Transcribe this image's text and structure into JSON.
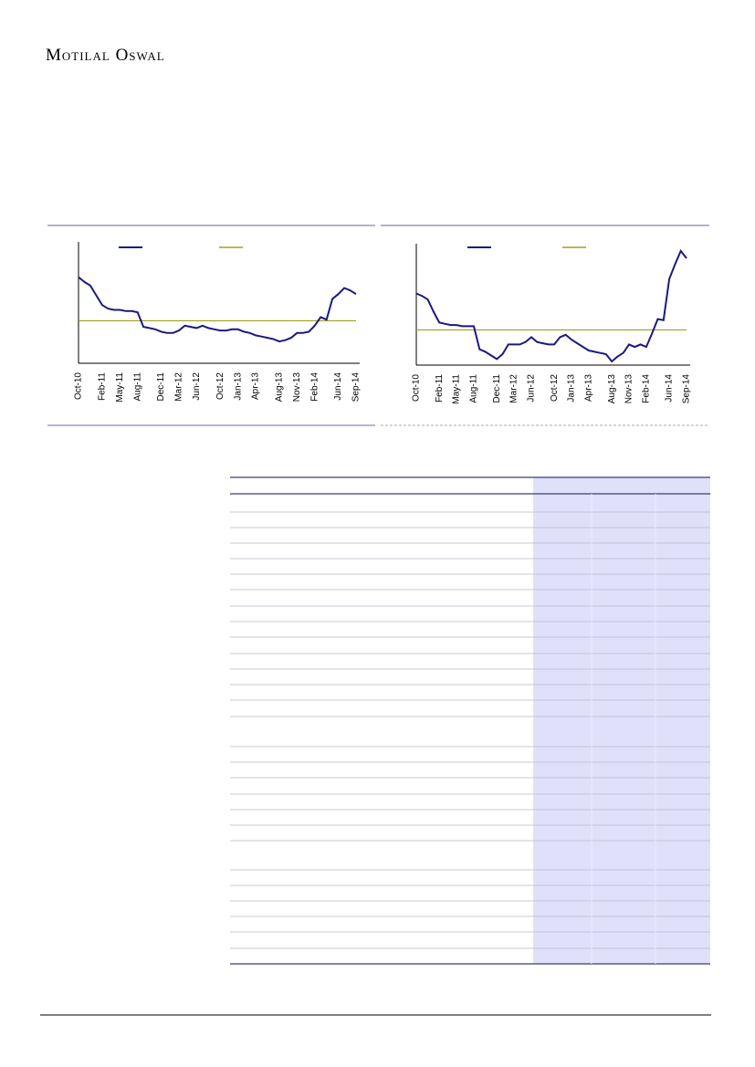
{
  "header": {
    "brand": "Motilal Oswal"
  },
  "chart_data": [
    {
      "type": "line",
      "categories": [
        "Oct-10",
        null,
        null,
        null,
        "Feb-11",
        null,
        null,
        "May-11",
        null,
        null,
        "Aug-11",
        null,
        null,
        null,
        "Dec-11",
        null,
        null,
        "Mar-12",
        null,
        null,
        "Jun-12",
        null,
        null,
        null,
        "Oct-12",
        null,
        null,
        "Jan-13",
        null,
        null,
        "Apr-13",
        null,
        null,
        null,
        "Aug-13",
        null,
        null,
        "Nov-13",
        null,
        null,
        "Feb-14",
        null,
        null,
        null,
        "Jun-14",
        null,
        null,
        "Sep-14"
      ],
      "series": [
        {
          "color": "#1a1a80",
          "values": [
            71,
            67,
            64,
            56,
            48,
            45,
            44,
            44,
            43,
            43,
            42,
            30,
            29,
            28,
            26,
            25,
            25,
            27,
            31,
            30,
            29,
            31,
            29,
            28,
            27,
            27,
            28,
            28,
            26,
            25,
            23,
            22,
            21,
            20,
            18,
            19,
            21,
            25,
            25,
            26,
            31,
            38,
            36,
            53,
            57,
            62,
            60,
            57
          ]
        }
      ],
      "average": {
        "value": 35,
        "color": "#a0a020"
      },
      "ylim": [
        0,
        100
      ]
    },
    {
      "type": "line",
      "categories": [
        "Oct-10",
        null,
        null,
        null,
        "Feb-11",
        null,
        null,
        "May-11",
        null,
        null,
        "Aug-11",
        null,
        null,
        null,
        "Dec-11",
        null,
        null,
        "Mar-12",
        null,
        null,
        "Jun-12",
        null,
        null,
        null,
        "Oct-12",
        null,
        null,
        "Jan-13",
        null,
        null,
        "Apr-13",
        null,
        null,
        null,
        "Aug-13",
        null,
        null,
        "Nov-13",
        null,
        null,
        "Feb-14",
        null,
        null,
        null,
        "Jun-14",
        null,
        null,
        "Sep-14"
      ],
      "series": [
        {
          "color": "#1a1a80",
          "values": [
            59,
            57,
            54,
            44,
            35,
            34,
            33,
            33,
            32,
            32,
            32,
            13,
            11,
            8,
            5,
            9,
            17,
            17,
            17,
            19,
            23,
            19,
            18,
            17,
            17,
            23,
            25,
            21,
            18,
            15,
            12,
            11,
            10,
            9,
            3,
            7,
            10,
            17,
            15,
            17,
            15,
            26,
            38,
            37,
            71,
            83,
            94,
            88
          ]
        }
      ],
      "average": {
        "value": 29,
        "color": "#a0a020"
      },
      "ylim": [
        0,
        100
      ]
    }
  ]
}
